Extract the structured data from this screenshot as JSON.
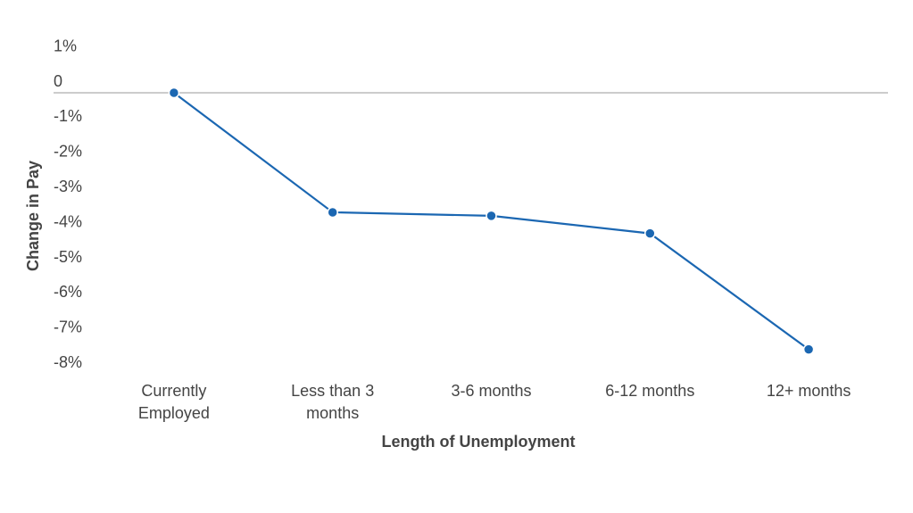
{
  "chart_data": {
    "type": "line",
    "x_label": "Length of Unemployment",
    "y_label": "Change in Pay",
    "categories": [
      "Currently Employed",
      "Less than 3 months",
      "3-6 months",
      "6-12 months",
      "12+ months"
    ],
    "series": [
      {
        "name": "Change in Pay",
        "color": "#1b67b2",
        "values": [
          0,
          -3.4,
          -3.5,
          -4.0,
          -7.3
        ]
      }
    ],
    "ylim": [
      -8,
      1
    ],
    "yticks": [
      {
        "value": 1,
        "label": "1%"
      },
      0,
      {
        "value": -1,
        "label": "-1%"
      },
      {
        "value": -2,
        "label": "-2%"
      },
      {
        "value": -3,
        "label": "-3%"
      },
      {
        "value": -4,
        "label": "-4%"
      },
      {
        "value": -5,
        "label": "-5%"
      },
      {
        "value": -6,
        "label": "-6%"
      },
      {
        "value": -7,
        "label": "-7%"
      },
      {
        "value": -8,
        "label": "-8%"
      }
    ],
    "grid": false
  }
}
